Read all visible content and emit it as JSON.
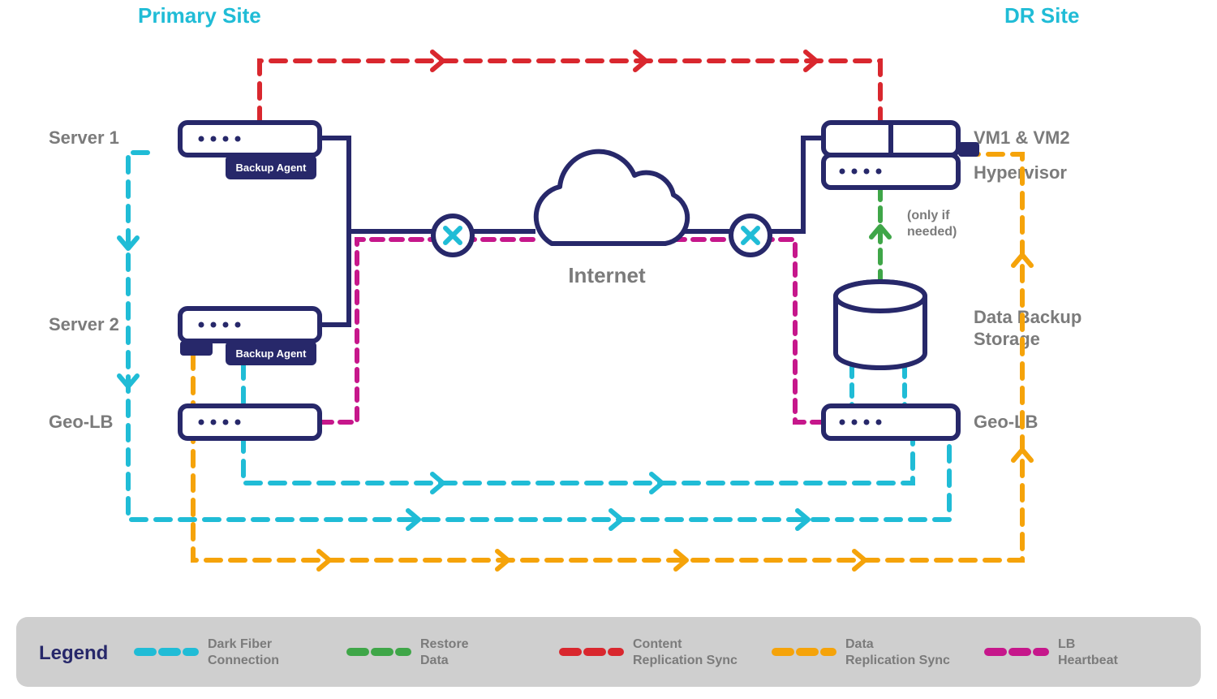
{
  "colors": {
    "navy": "#27286a",
    "cyan": "#20bcd6",
    "green": "#3fa648",
    "red": "#d9272e",
    "orange": "#f5a30a",
    "magenta": "#c6178b",
    "gray_text": "#7b7b7b",
    "legend_bg": "#cfcfcf",
    "white": "#ffffff"
  },
  "titles": {
    "primary": "Primary Site",
    "dr": "DR Site"
  },
  "labels": {
    "server1": "Server 1",
    "server2": "Server 2",
    "geo_lb_left": "Geo-LB",
    "vm": "VM1 & VM2",
    "hypervisor": "Hypervisor",
    "storage_line1": "Data Backup",
    "storage_line2": "Storage",
    "geo_lb_right": "Geo-LB",
    "internet": "Internet",
    "backup_agent": "Backup Agent",
    "note_line1": "(only if",
    "note_line2": "needed)"
  },
  "legend": {
    "title": "Legend",
    "items": [
      {
        "color": "#20bcd6",
        "label1": "Dark Fiber",
        "label2": "Connection"
      },
      {
        "color": "#3fa648",
        "label1": "Restore",
        "label2": "Data"
      },
      {
        "color": "#d9272e",
        "label1": "Content",
        "label2": "Replication Sync"
      },
      {
        "color": "#f5a30a",
        "label1": "Data",
        "label2": "Replication Sync"
      },
      {
        "color": "#c6178b",
        "label1": "LB",
        "label2": "Heartbeat"
      }
    ]
  },
  "stroke": {
    "node": 6,
    "conn": 6,
    "dash": "18 12"
  }
}
